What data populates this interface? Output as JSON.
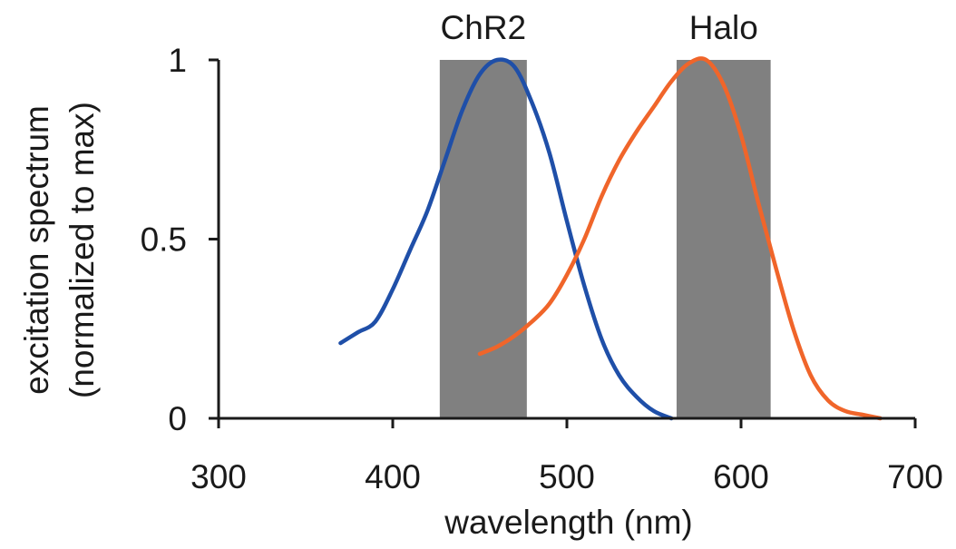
{
  "chart_data": {
    "type": "line",
    "x": [
      370,
      380,
      390,
      400,
      410,
      420,
      430,
      440,
      450,
      460,
      470,
      480,
      490,
      500,
      510,
      520,
      530,
      540,
      550,
      560,
      570,
      580,
      590,
      600,
      610,
      620,
      630,
      640,
      650,
      660,
      670,
      680
    ],
    "series": [
      {
        "name": "ChR2",
        "color": "#1f4fa8",
        "x_range": [
          370,
          562
        ],
        "values": [
          0.21,
          0.24,
          0.27,
          0.36,
          0.47,
          0.58,
          0.72,
          0.86,
          0.96,
          1.0,
          0.98,
          0.88,
          0.74,
          0.55,
          0.37,
          0.22,
          0.12,
          0.06,
          0.02,
          0.0,
          null,
          null,
          null,
          null,
          null,
          null,
          null,
          null,
          null,
          null,
          null,
          null
        ]
      },
      {
        "name": "Halo",
        "color": "#f0652a",
        "x_range": [
          450,
          680
        ],
        "values": [
          null,
          null,
          null,
          null,
          null,
          null,
          null,
          null,
          0.18,
          0.2,
          0.23,
          0.27,
          0.32,
          0.4,
          0.5,
          0.62,
          0.72,
          0.8,
          0.87,
          0.94,
          0.99,
          1.0,
          0.93,
          0.79,
          0.6,
          0.42,
          0.25,
          0.12,
          0.05,
          0.02,
          0.01,
          0.0
        ]
      }
    ],
    "bands": [
      {
        "label": "ChR2",
        "x_start": 427,
        "x_end": 477,
        "color": "#808080"
      },
      {
        "label": "Halo",
        "x_start": 563,
        "x_end": 617,
        "color": "#808080"
      }
    ],
    "xlabel": "wavelength (nm)",
    "ylabel_line1": "excitation spectrum",
    "ylabel_line2": "(normalized to max)",
    "xlim": [
      300,
      700
    ],
    "ylim": [
      0,
      1
    ],
    "xticks": [
      300,
      400,
      500,
      600,
      700
    ],
    "yticks": [
      0,
      0.5,
      1
    ],
    "grid": false,
    "legend": "none"
  }
}
